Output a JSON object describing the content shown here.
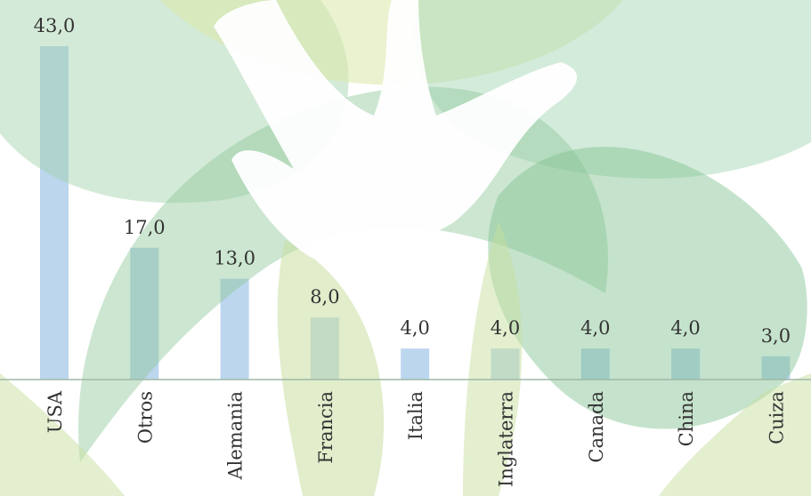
{
  "chart_data": {
    "type": "bar",
    "categories": [
      "USA",
      "Otros",
      "Alemania",
      "Francia",
      "Italia",
      "Inglaterra",
      "Canada",
      "China",
      "Cuiza"
    ],
    "values": [
      43,
      17,
      13,
      8,
      4,
      4,
      4,
      4,
      3
    ],
    "value_labels": [
      "43,0",
      "17,0",
      "13,0",
      "8,0",
      "4,0",
      "4,0",
      "4,0",
      "4,0",
      "3,0"
    ],
    "color": "#bcd6ee"
  }
}
